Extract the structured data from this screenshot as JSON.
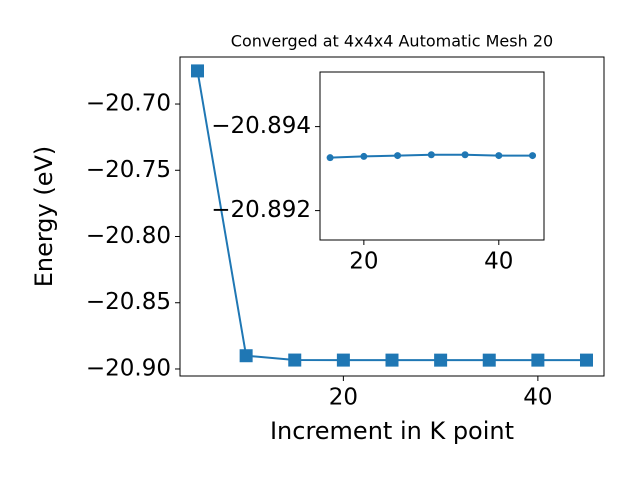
{
  "chart_data": [
    {
      "type": "line",
      "title": "Converged at 4x4x4 Automatic Mesh 20",
      "x_label": "Increment in K point",
      "y_label": "Energy (eV)",
      "x": [
        5,
        10,
        15,
        20,
        25,
        30,
        35,
        40,
        45
      ],
      "series": [
        {
          "color": "#1f77b4",
          "marker": "square",
          "values": [
            -20.675,
            -20.89,
            -20.89326,
            -20.89329,
            -20.89331,
            -20.89333,
            -20.89333,
            -20.89331,
            -20.89331
          ]
        }
      ],
      "xlim": [
        3.2,
        46.8
      ],
      "xticks": [
        20,
        40
      ],
      "ylim": [
        -20.9053,
        -20.6645
      ],
      "yticks": [
        {
          "value": -20.9,
          "label": "−20.90"
        },
        {
          "value": -20.85,
          "label": "−20.85"
        },
        {
          "value": -20.8,
          "label": "−20.80"
        },
        {
          "value": -20.75,
          "label": "−20.75"
        },
        {
          "value": -20.7,
          "label": "−20.70"
        }
      ]
    },
    {
      "type": "line",
      "x": [
        15,
        20,
        25,
        30,
        35,
        40,
        45
      ],
      "series": [
        {
          "color": "#1f77b4",
          "marker": "circle",
          "values": [
            -20.89326,
            -20.89329,
            -20.89331,
            -20.89333,
            -20.89333,
            -20.89331,
            -20.89331
          ]
        }
      ],
      "xlim": [
        13.5,
        46.7
      ],
      "xticks": [
        20,
        40
      ],
      "ylim": [
        -20.8913,
        -20.8953
      ],
      "yticks": [
        {
          "value": -20.892,
          "label": "−20.892"
        },
        {
          "value": -20.894,
          "label": "−20.894"
        }
      ]
    }
  ]
}
